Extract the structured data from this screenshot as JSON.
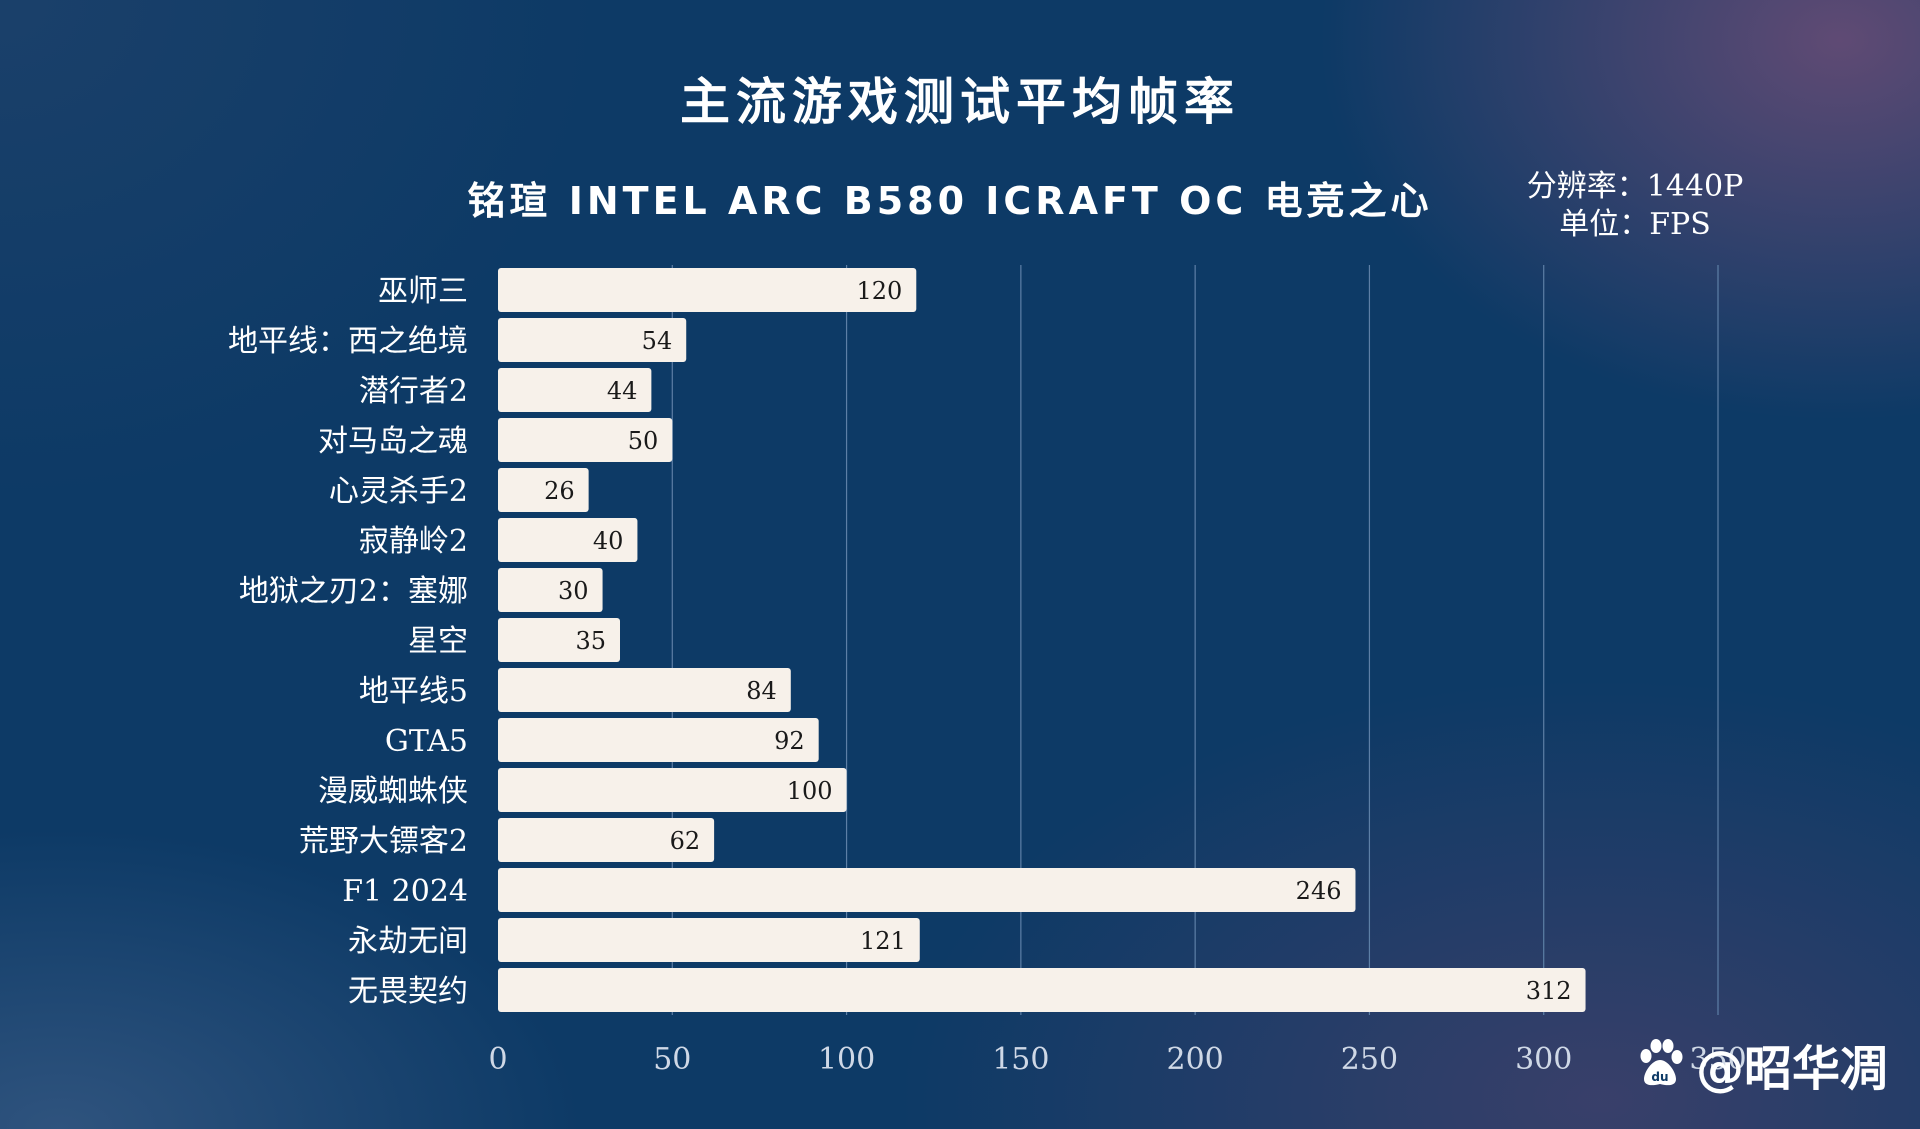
{
  "title": "主流游戏测试平均帧率",
  "subtitle": "铭瑄 INTEL ARC B580 ICRAFT OC 电竞之心",
  "meta": {
    "resolution": "分辨率：1440P",
    "unit": "单位：FPS"
  },
  "watermark": {
    "text": "@昭华凋",
    "icon": "baidu-paw-icon"
  },
  "colors": {
    "background": "#0d3a66",
    "bar": "#f7f1ea",
    "grid": "#5d7fa6"
  },
  "chart_data": {
    "type": "bar",
    "orientation": "horizontal",
    "categories": [
      "巫师三",
      "地平线：西之绝境",
      "潜行者2",
      "对马岛之魂",
      "心灵杀手2",
      "寂静岭2",
      "地狱之刃2：塞娜",
      "星空",
      "地平线5",
      "GTA5",
      "漫威蜘蛛侠",
      "荒野大镖客2",
      "F1 2024",
      "永劫无间",
      "无畏契约"
    ],
    "values": [
      120,
      54,
      44,
      50,
      26,
      40,
      30,
      35,
      84,
      92,
      100,
      62,
      246,
      121,
      312
    ],
    "title": "主流游戏测试平均帧率",
    "subtitle": "铭瑄 INTEL ARC B580 ICRAFT OC 电竞之心",
    "xlim": [
      0,
      350
    ],
    "xticks": [
      0,
      50,
      100,
      150,
      200,
      250,
      300,
      350
    ],
    "xtick_labels": [
      "0",
      "50",
      "100",
      "150",
      "200",
      "250",
      "300",
      "350"
    ],
    "grid": "vertical",
    "data_labels": true
  }
}
